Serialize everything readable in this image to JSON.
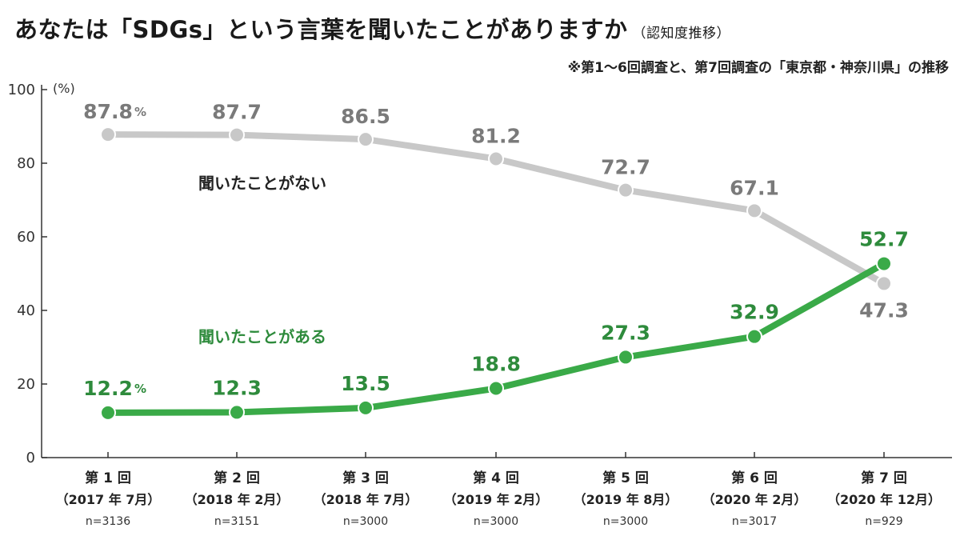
{
  "header": {
    "title": "あなたは「SDGs」という言葉を聞いたことがありますか",
    "title_sub": "（認知度推移）",
    "note": "※第1〜6回調査と、第7回調査の「東京都・神奈川県」の推移"
  },
  "chart_data": {
    "type": "line",
    "ylim": [
      0,
      100
    ],
    "yticks": [
      "0",
      "20",
      "40",
      "60",
      "80",
      "100"
    ],
    "ylabel": "(%)",
    "categories": [
      {
        "round": "第 1 回",
        "period": "（2017 年 7月）",
        "n": "n=3136"
      },
      {
        "round": "第 2 回",
        "period": "（2018 年 2月）",
        "n": "n=3151"
      },
      {
        "round": "第 3 回",
        "period": "（2018 年 7月）",
        "n": "n=3000"
      },
      {
        "round": "第 4 回",
        "period": "（2019 年 2月）",
        "n": "n=3000"
      },
      {
        "round": "第 5 回",
        "period": "（2019 年 8月）",
        "n": "n=3000"
      },
      {
        "round": "第 6 回",
        "period": "（2020 年 2月）",
        "n": "n=3017"
      },
      {
        "round": "第 7 回",
        "period": "（2020 年 12月）",
        "n": "n=929"
      }
    ],
    "series": [
      {
        "name": "聞いたことがない",
        "color": "#c8c8c8",
        "label_color": "#7a7a7a",
        "values": [
          87.8,
          87.7,
          86.5,
          81.2,
          72.7,
          67.1,
          47.3
        ],
        "labels": [
          "87.8",
          "87.7",
          "86.5",
          "81.2",
          "72.7",
          "67.1",
          "47.3"
        ],
        "first_unit": "%"
      },
      {
        "name": "聞いたことがある",
        "color": "#3aaa48",
        "label_color": "#2e8b3c",
        "values": [
          12.2,
          12.3,
          13.5,
          18.8,
          27.3,
          32.9,
          52.7
        ],
        "labels": [
          "12.2",
          "12.3",
          "13.5",
          "18.8",
          "27.3",
          "32.9",
          "52.7"
        ],
        "first_unit": "%"
      }
    ]
  }
}
